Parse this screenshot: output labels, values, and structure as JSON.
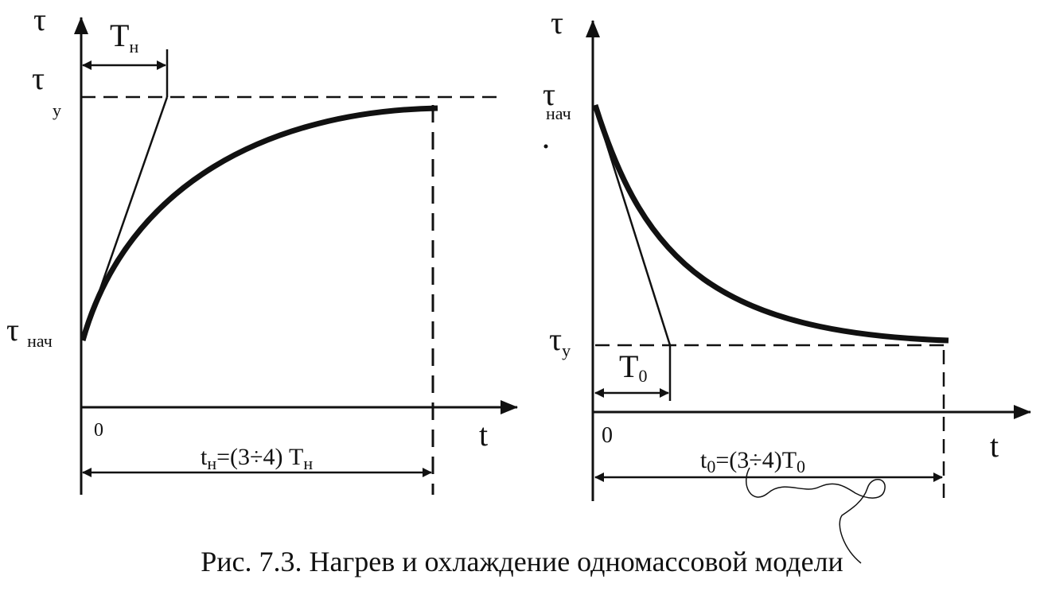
{
  "heating": {
    "y_axis": {
      "sym": "τ"
    },
    "x_axis": {
      "sym": "t"
    },
    "tau_y": {
      "sym": "τ",
      "sub": "у"
    },
    "tau_start": {
      "sym": "τ",
      "sub": "нач"
    },
    "T_n": {
      "sym": "T",
      "sub": "н"
    },
    "origin": "0",
    "duration": {
      "t": "t",
      "t_sub": "н",
      "mid": "=(3÷4) T",
      "T_sub": "н"
    }
  },
  "cooling": {
    "y_axis": {
      "sym": "τ"
    },
    "x_axis": {
      "sym": "t"
    },
    "tau_start": {
      "sym": "τ",
      "sub": "нач"
    },
    "tau_y": {
      "sym": "τ",
      "sub": "у"
    },
    "T_0": {
      "sym": "T",
      "sub": "0"
    },
    "origin": "0",
    "duration": {
      "t": "t",
      "t_sub": "0",
      "mid": "=(3÷4)T",
      "T_sub": "0"
    }
  },
  "caption": "Рис. 7.3. Нагрев и охлаждение одномассовой модели"
}
